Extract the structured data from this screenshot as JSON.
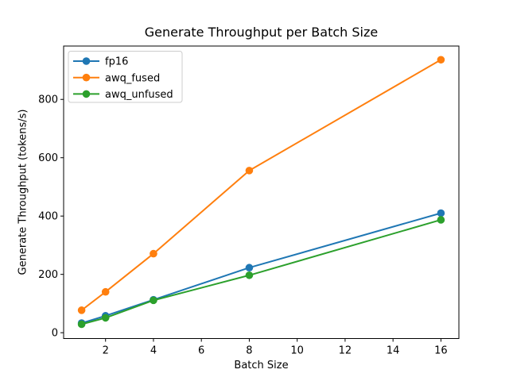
{
  "chart_data": {
    "type": "line",
    "title": "Generate Throughput per Batch Size",
    "xlabel": "Batch Size",
    "ylabel": "Generate Throughput (tokens/s)",
    "x": [
      1,
      2,
      4,
      8,
      16
    ],
    "series": [
      {
        "name": "fp16",
        "color": "#1f77b4",
        "values": [
          33,
          58,
          113,
          223,
          410
        ]
      },
      {
        "name": "awq_fused",
        "color": "#ff7f0e",
        "values": [
          77,
          140,
          271,
          556,
          936
        ]
      },
      {
        "name": "awq_unfused",
        "color": "#2ca02c",
        "values": [
          29,
          51,
          111,
          197,
          387
        ]
      }
    ],
    "xticks": [
      2,
      4,
      6,
      8,
      10,
      12,
      14,
      16
    ],
    "yticks": [
      0,
      200,
      400,
      600,
      800
    ],
    "xlim": [
      0.25,
      16.75
    ],
    "ylim": [
      -20,
      983
    ],
    "grid": false,
    "marker": "o",
    "legend_position": "upper left",
    "legend_labels": [
      "fp16",
      "awq_fused",
      "awq_unfused"
    ],
    "axis_color": "#000000",
    "text_color": "#000000",
    "legend_border_color": "#cccccc",
    "background_color": "#ffffff"
  }
}
